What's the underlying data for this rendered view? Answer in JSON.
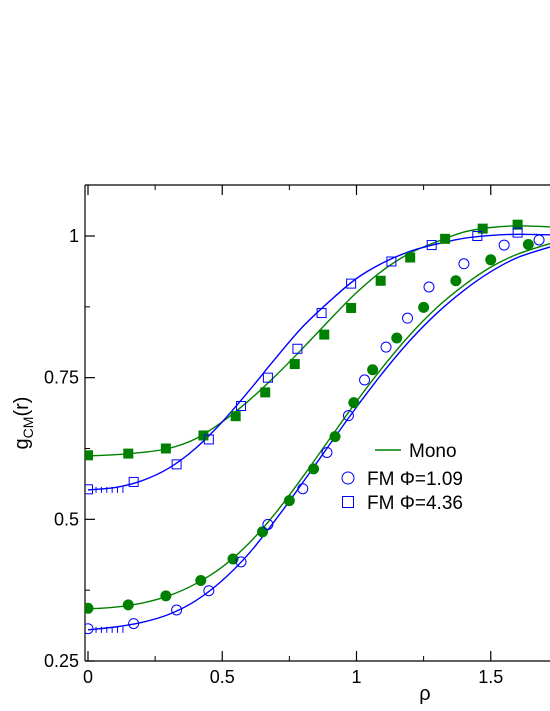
{
  "chart_data": {
    "type": "line",
    "xlabel": "ρ",
    "ylabel_main": "g",
    "ylabel_sub": "CM",
    "ylabel_suffix": "(r)",
    "xlim": [
      0,
      1.73
    ],
    "ylim": [
      0.25,
      1.09
    ],
    "xticks": [
      0,
      0.5,
      1,
      1.5
    ],
    "xtick_labels": [
      "0",
      "0.5",
      "1",
      "1.5"
    ],
    "yticks": [
      0.25,
      0.5,
      0.75,
      1
    ],
    "ytick_labels": [
      "0.25",
      "0.5",
      "0.75",
      "1"
    ],
    "legend_position": "center-right",
    "series": [
      {
        "name": "Mono",
        "kind": "line",
        "color": "#008000",
        "points": [
          [
            0,
            0.612
          ],
          [
            0.1,
            0.614
          ],
          [
            0.2,
            0.618
          ],
          [
            0.3,
            0.625
          ],
          [
            0.4,
            0.642
          ],
          [
            0.5,
            0.672
          ],
          [
            0.6,
            0.71
          ],
          [
            0.7,
            0.754
          ],
          [
            0.8,
            0.802
          ],
          [
            0.9,
            0.852
          ],
          [
            1.0,
            0.9
          ],
          [
            1.1,
            0.94
          ],
          [
            1.2,
            0.97
          ],
          [
            1.3,
            0.99
          ],
          [
            1.4,
            1.007
          ],
          [
            1.5,
            1.015
          ],
          [
            1.6,
            1.018
          ],
          [
            1.73,
            1.016
          ]
        ]
      },
      {
        "name": "",
        "kind": "line",
        "color": "#008000",
        "points": [
          [
            0,
            0.342
          ],
          [
            0.1,
            0.345
          ],
          [
            0.2,
            0.352
          ],
          [
            0.3,
            0.365
          ],
          [
            0.4,
            0.386
          ],
          [
            0.5,
            0.416
          ],
          [
            0.6,
            0.458
          ],
          [
            0.7,
            0.512
          ],
          [
            0.8,
            0.575
          ],
          [
            0.9,
            0.642
          ],
          [
            1.0,
            0.708
          ],
          [
            1.1,
            0.77
          ],
          [
            1.2,
            0.826
          ],
          [
            1.3,
            0.874
          ],
          [
            1.4,
            0.913
          ],
          [
            1.5,
            0.945
          ],
          [
            1.6,
            0.968
          ],
          [
            1.73,
            0.988
          ]
        ]
      },
      {
        "name": "",
        "kind": "line",
        "color": "#0000ff",
        "points": [
          [
            0,
            0.552
          ],
          [
            0.1,
            0.556
          ],
          [
            0.2,
            0.568
          ],
          [
            0.3,
            0.59
          ],
          [
            0.4,
            0.625
          ],
          [
            0.5,
            0.672
          ],
          [
            0.6,
            0.727
          ],
          [
            0.7,
            0.785
          ],
          [
            0.8,
            0.84
          ],
          [
            0.9,
            0.885
          ],
          [
            1.0,
            0.925
          ],
          [
            1.1,
            0.953
          ],
          [
            1.2,
            0.973
          ],
          [
            1.3,
            0.986
          ],
          [
            1.4,
            0.996
          ],
          [
            1.5,
            1.001
          ],
          [
            1.6,
            1.003
          ],
          [
            1.73,
            1.002
          ]
        ]
      },
      {
        "name": "",
        "kind": "line",
        "color": "#0000ff",
        "points": [
          [
            0,
            0.305
          ],
          [
            0.1,
            0.31
          ],
          [
            0.2,
            0.318
          ],
          [
            0.3,
            0.332
          ],
          [
            0.4,
            0.356
          ],
          [
            0.5,
            0.392
          ],
          [
            0.6,
            0.44
          ],
          [
            0.7,
            0.5
          ],
          [
            0.8,
            0.565
          ],
          [
            0.9,
            0.632
          ],
          [
            1.0,
            0.698
          ],
          [
            1.1,
            0.76
          ],
          [
            1.2,
            0.816
          ],
          [
            1.3,
            0.864
          ],
          [
            1.4,
            0.904
          ],
          [
            1.5,
            0.937
          ],
          [
            1.6,
            0.962
          ],
          [
            1.73,
            0.982
          ]
        ]
      },
      {
        "name": "",
        "kind": "marker",
        "marker": "filled-square",
        "color": "#008000",
        "points": [
          [
            0,
            0.613
          ],
          [
            0.15,
            0.616
          ],
          [
            0.29,
            0.625
          ],
          [
            0.43,
            0.648
          ],
          [
            0.55,
            0.682
          ],
          [
            0.66,
            0.724
          ],
          [
            0.77,
            0.774
          ],
          [
            0.88,
            0.826
          ],
          [
            0.98,
            0.873
          ],
          [
            1.09,
            0.921
          ],
          [
            1.2,
            0.962
          ],
          [
            1.33,
            0.995
          ],
          [
            1.47,
            1.013
          ],
          [
            1.6,
            1.02
          ]
        ]
      },
      {
        "name": "",
        "kind": "marker",
        "marker": "filled-circle",
        "color": "#008000",
        "points": [
          [
            0,
            0.343
          ],
          [
            0.15,
            0.349
          ],
          [
            0.29,
            0.365
          ],
          [
            0.42,
            0.392
          ],
          [
            0.54,
            0.43
          ],
          [
            0.65,
            0.478
          ],
          [
            0.75,
            0.533
          ],
          [
            0.84,
            0.589
          ],
          [
            0.92,
            0.646
          ],
          [
            0.99,
            0.706
          ],
          [
            1.06,
            0.764
          ],
          [
            1.15,
            0.82
          ],
          [
            1.25,
            0.874
          ],
          [
            1.37,
            0.921
          ],
          [
            1.5,
            0.958
          ],
          [
            1.64,
            0.985
          ]
        ]
      },
      {
        "name": "FM Φ=4.36",
        "kind": "marker",
        "marker": "open-square",
        "color": "#0000ff",
        "points": [
          [
            0,
            0.553
          ],
          [
            0.17,
            0.566
          ],
          [
            0.33,
            0.597
          ],
          [
            0.45,
            0.641
          ],
          [
            0.57,
            0.7
          ],
          [
            0.67,
            0.75
          ],
          [
            0.78,
            0.801
          ],
          [
            0.87,
            0.864
          ],
          [
            0.98,
            0.916
          ],
          [
            1.13,
            0.955
          ],
          [
            1.28,
            0.984
          ],
          [
            1.45,
            1.0
          ],
          [
            1.6,
            1.006
          ]
        ]
      },
      {
        "name": "FM Φ=1.09",
        "kind": "marker",
        "marker": "open-circle",
        "color": "#0000ff",
        "points": [
          [
            0,
            0.307
          ],
          [
            0.17,
            0.316
          ],
          [
            0.33,
            0.34
          ],
          [
            0.45,
            0.374
          ],
          [
            0.57,
            0.425
          ],
          [
            0.67,
            0.491
          ],
          [
            0.8,
            0.554
          ],
          [
            0.89,
            0.618
          ],
          [
            0.97,
            0.683
          ],
          [
            1.03,
            0.746
          ],
          [
            1.11,
            0.804
          ],
          [
            1.19,
            0.855
          ],
          [
            1.27,
            0.91
          ],
          [
            1.4,
            0.951
          ],
          [
            1.55,
            0.984
          ],
          [
            1.68,
            0.993
          ]
        ]
      }
    ],
    "error_ticks": [
      {
        "color": "#0000ff",
        "y0": 0.552,
        "xs": [
          0.03,
          0.05,
          0.07,
          0.09,
          0.11,
          0.13
        ]
      },
      {
        "color": "#0000ff",
        "y0": 0.305,
        "xs": [
          0.03,
          0.05,
          0.07,
          0.09,
          0.11,
          0.13
        ]
      }
    ],
    "legend": [
      {
        "label": "Mono",
        "color": "#008000",
        "symbol": "line"
      },
      {
        "label": "FM Φ=1.09",
        "color": "#0000ff",
        "symbol": "open-circle"
      },
      {
        "label": "FM Φ=4.36",
        "color": "#0000ff",
        "symbol": "open-square"
      }
    ]
  }
}
